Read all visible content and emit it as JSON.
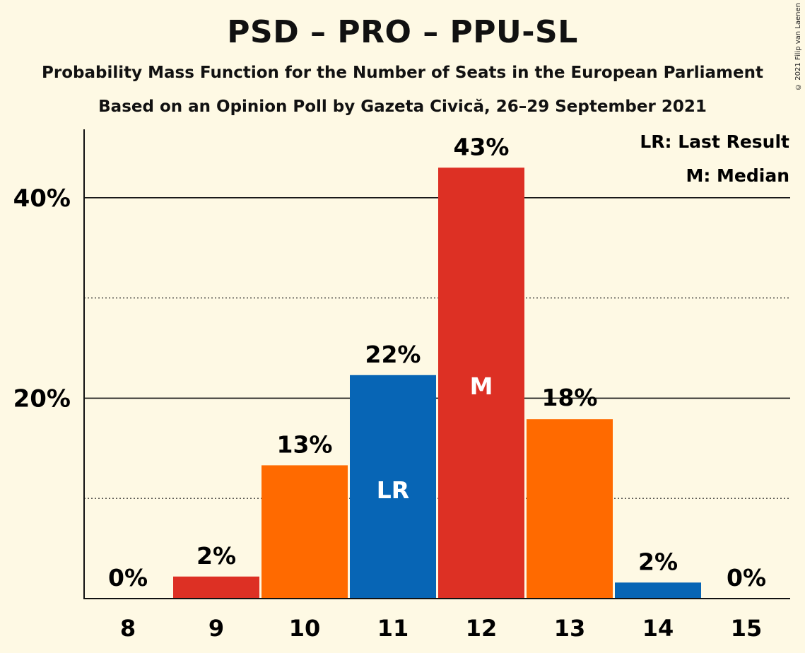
{
  "title": "PSD – PRO – PPU-SL",
  "subtitle_1": "Probability Mass Function for the Number of Seats in the European Parliament",
  "subtitle_2": "Based on an Opinion Poll by Gazeta Civică, 26–29 September 2021",
  "copyright": "© 2021 Filip van Laenen",
  "legend": {
    "last_result": "LR: Last Result",
    "median": "M: Median"
  },
  "colors": {
    "background": "#fef9e4",
    "red": "#dd3024",
    "orange": "#ff6a00",
    "blue": "#0765b5"
  },
  "chart_data": {
    "type": "bar",
    "categories": [
      "8",
      "9",
      "10",
      "11",
      "12",
      "13",
      "14",
      "15"
    ],
    "values": [
      0,
      2.2,
      13.3,
      22.3,
      43,
      17.9,
      1.6,
      0
    ],
    "value_labels": [
      "0%",
      "2%",
      "13%",
      "22%",
      "43%",
      "18%",
      "2%",
      "0%"
    ],
    "bar_colors": [
      "red",
      "red",
      "orange",
      "blue",
      "red",
      "orange",
      "blue",
      "red"
    ],
    "markers": {
      "11": "LR",
      "12": "M"
    },
    "ylim": [
      0,
      47
    ],
    "y_ticks": [
      {
        "value": 20,
        "label": "20%"
      },
      {
        "value": 40,
        "label": "40%"
      }
    ],
    "minor_grid": [
      10,
      30
    ],
    "grid": true,
    "legend_position": "top-right"
  }
}
